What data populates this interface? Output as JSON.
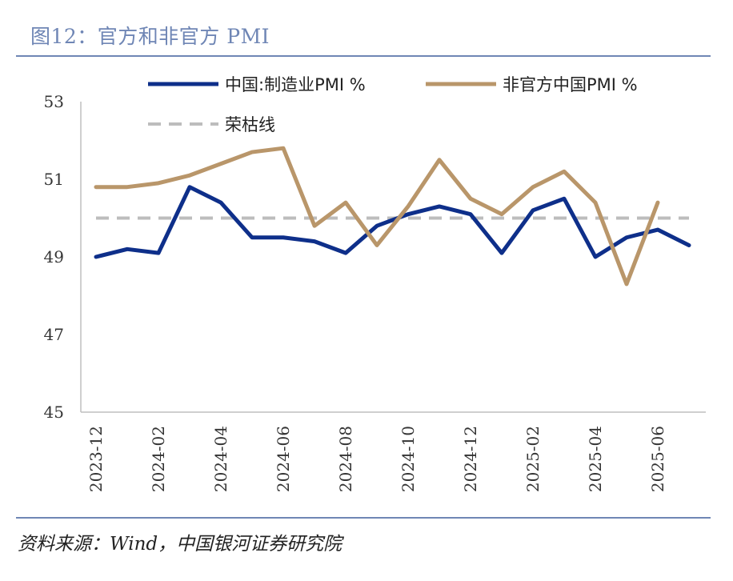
{
  "title": "图12：官方和非官方 PMI",
  "source": "资料来源：Wind，中国银河证券研究院",
  "chart_data": {
    "type": "line",
    "x": [
      "2023-12",
      "2024-01",
      "2024-02",
      "2024-03",
      "2024-04",
      "2024-05",
      "2024-06",
      "2024-07",
      "2024-08",
      "2024-09",
      "2024-10",
      "2024-11",
      "2024-12",
      "2025-01",
      "2025-02",
      "2025-03",
      "2025-04",
      "2025-05",
      "2025-06",
      "2025-07"
    ],
    "xtick_labels": [
      "2023-12",
      "2024-02",
      "2024-04",
      "2024-06",
      "2024-08",
      "2024-10",
      "2024-12",
      "2025-02",
      "2025-04",
      "2025-06"
    ],
    "yticks": [
      45,
      47,
      49,
      51,
      53
    ],
    "ylim": [
      45,
      53
    ],
    "series": [
      {
        "name": "中国:制造业PMI %",
        "color": "#0e2f8a",
        "values": [
          49.0,
          49.2,
          49.1,
          50.8,
          50.4,
          49.5,
          49.5,
          49.4,
          49.1,
          49.8,
          50.1,
          50.3,
          50.1,
          49.1,
          50.2,
          50.5,
          49.0,
          49.5,
          49.7,
          49.3
        ]
      },
      {
        "name": "非官方中国PMI %",
        "color": "#b9966a",
        "values": [
          50.8,
          50.8,
          50.9,
          51.1,
          51.4,
          51.7,
          51.8,
          49.8,
          50.4,
          49.3,
          50.3,
          51.5,
          50.5,
          50.1,
          50.8,
          51.2,
          50.4,
          48.3,
          50.4,
          null
        ]
      },
      {
        "name": "荣枯线",
        "color": "#bdbdbd",
        "dashed": true,
        "values": [
          50,
          50,
          50,
          50,
          50,
          50,
          50,
          50,
          50,
          50,
          50,
          50,
          50,
          50,
          50,
          50,
          50,
          50,
          50,
          50
        ]
      }
    ],
    "grid": false,
    "legend_position": "top"
  }
}
